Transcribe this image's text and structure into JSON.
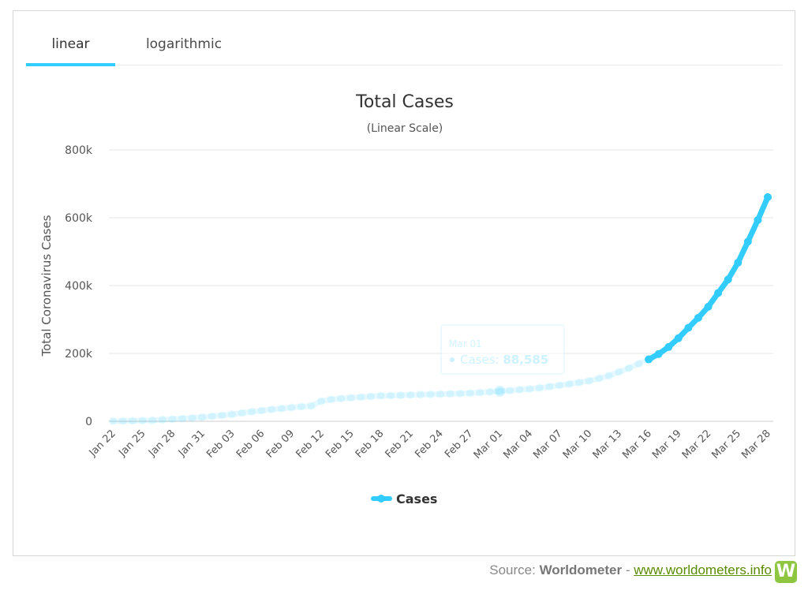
{
  "tabs": [
    {
      "label": "linear",
      "active": true
    },
    {
      "label": "logarithmic",
      "active": false
    }
  ],
  "source": {
    "prefix": "Source: ",
    "name": "Worldometer",
    "separator": " - ",
    "link_text": "www.worldometers.info",
    "logo_letter": "W"
  },
  "colors": {
    "accent": "#33ccff",
    "series": "#33ccff",
    "link": "#5a8a00",
    "logo": "#8ec63f"
  },
  "tooltip": {
    "date": "Mar 01",
    "label": "Cases: ",
    "value": "88,585"
  },
  "chart_data": {
    "type": "line",
    "title": "Total Cases",
    "subtitle": "(Linear Scale)",
    "xlabel": "",
    "ylabel": "Total Coronavirus Cases",
    "ylim": [
      0,
      800000
    ],
    "yticks": [
      0,
      200000,
      400000,
      600000,
      800000
    ],
    "ytick_labels": [
      "0",
      "200k",
      "400k",
      "600k",
      "800k"
    ],
    "xtick_labels": [
      "Jan 22",
      "Jan 25",
      "Jan 28",
      "Jan 31",
      "Feb 03",
      "Feb 06",
      "Feb 09",
      "Feb 12",
      "Feb 15",
      "Feb 18",
      "Feb 21",
      "Feb 24",
      "Feb 27",
      "Mar 01",
      "Mar 04",
      "Mar 07",
      "Mar 10",
      "Mar 13",
      "Mar 16",
      "Mar 19",
      "Mar 22",
      "Mar 25",
      "Mar 28"
    ],
    "grid": true,
    "legend_position": "bottom",
    "highlighted_from": "Mar 16",
    "series": [
      {
        "name": "Cases",
        "x": [
          "Jan 22",
          "Jan 23",
          "Jan 24",
          "Jan 25",
          "Jan 26",
          "Jan 27",
          "Jan 28",
          "Jan 29",
          "Jan 30",
          "Jan 31",
          "Feb 01",
          "Feb 02",
          "Feb 03",
          "Feb 04",
          "Feb 05",
          "Feb 06",
          "Feb 07",
          "Feb 08",
          "Feb 09",
          "Feb 10",
          "Feb 11",
          "Feb 12",
          "Feb 13",
          "Feb 14",
          "Feb 15",
          "Feb 16",
          "Feb 17",
          "Feb 18",
          "Feb 19",
          "Feb 20",
          "Feb 21",
          "Feb 22",
          "Feb 23",
          "Feb 24",
          "Feb 25",
          "Feb 26",
          "Feb 27",
          "Feb 28",
          "Feb 29",
          "Mar 01",
          "Mar 02",
          "Mar 03",
          "Mar 04",
          "Mar 05",
          "Mar 06",
          "Mar 07",
          "Mar 08",
          "Mar 09",
          "Mar 10",
          "Mar 11",
          "Mar 12",
          "Mar 13",
          "Mar 14",
          "Mar 15",
          "Mar 16",
          "Mar 17",
          "Mar 18",
          "Mar 19",
          "Mar 20",
          "Mar 21",
          "Mar 22",
          "Mar 23",
          "Mar 24",
          "Mar 25",
          "Mar 26",
          "Mar 27",
          "Mar 28"
        ],
        "values": [
          580,
          845,
          1317,
          2015,
          2800,
          4581,
          6058,
          7813,
          9823,
          11950,
          14553,
          17391,
          20630,
          24545,
          28266,
          31439,
          34876,
          37552,
          40553,
          43099,
          45134,
          59287,
          64438,
          67100,
          69197,
          71329,
          73332,
          75184,
          75700,
          76677,
          77673,
          78651,
          79205,
          80087,
          80828,
          81820,
          83112,
          84615,
          86604,
          88585,
          90443,
          93016,
          95314,
          98425,
          102050,
          106099,
          109991,
          114381,
          119009,
          126214,
          134509,
          145416,
          156475,
          169511,
          182490,
          198234,
          218822,
          244933,
          275597,
          305036,
          337489,
          378235,
          418045,
          467653,
          529591,
          593291,
          660706
        ]
      }
    ]
  }
}
